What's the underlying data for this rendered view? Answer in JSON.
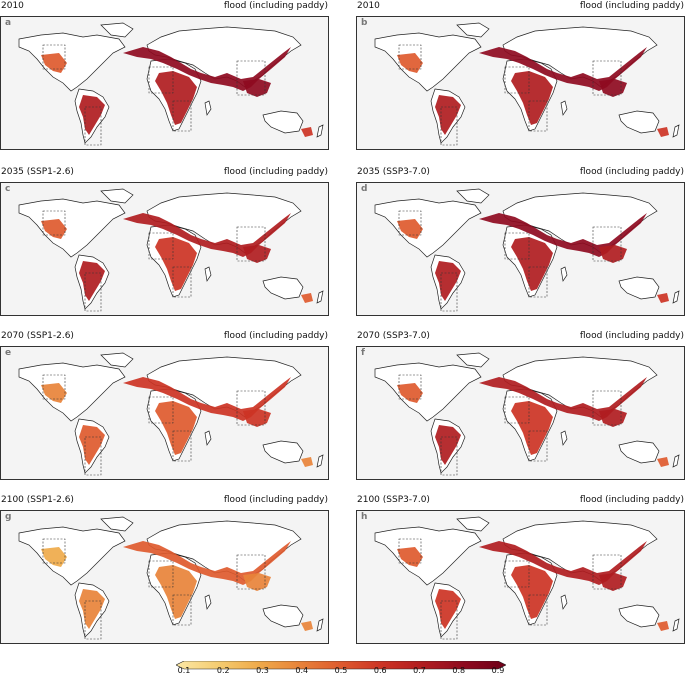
{
  "panels": [
    {
      "letter": "a",
      "period": "2010",
      "variable": "flood (including paddy)",
      "level": 0.86
    },
    {
      "letter": "b",
      "period": "2010",
      "variable": "flood (including paddy)",
      "level": 0.86
    },
    {
      "letter": "c",
      "period": "2035 (SSP1-2.6)",
      "variable": "flood (including paddy)",
      "level": 0.8
    },
    {
      "letter": "d",
      "period": "2035 (SSP3-7.0)",
      "variable": "flood (including paddy)",
      "level": 0.84
    },
    {
      "letter": "e",
      "period": "2070 (SSP1-2.6)",
      "variable": "flood (including paddy)",
      "level": 0.62
    },
    {
      "letter": "f",
      "period": "2070 (SSP3-7.0)",
      "variable": "flood (including paddy)",
      "level": 0.8
    },
    {
      "letter": "g",
      "period": "2100 (SSP1-2.6)",
      "variable": "flood (including paddy)",
      "level": 0.45
    },
    {
      "letter": "h",
      "period": "2100 (SSP3-7.0)",
      "variable": "flood (including paddy)",
      "level": 0.75
    }
  ],
  "colorbar": {
    "ticks": [
      "0.1",
      "0.2",
      "0.3",
      "0.4",
      "0.5",
      "0.6",
      "0.7",
      "0.8",
      "0.9"
    ],
    "min": 0.1,
    "max": 0.9,
    "colors": [
      "#fbe8a6",
      "#f5cd72",
      "#efaa4a",
      "#e8833a",
      "#de5a2e",
      "#cc3324",
      "#b01c20",
      "#8e0a1f",
      "#6e0018"
    ]
  },
  "colors": {
    "ocean": "#f4f4f4",
    "coast": "#222222"
  }
}
